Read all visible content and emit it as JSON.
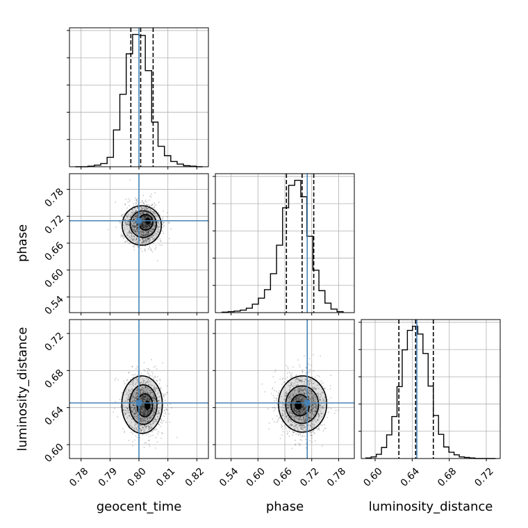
{
  "chart_data": {
    "type": "corner",
    "parameters": [
      "geocent_time",
      "phase",
      "luminosity_distance"
    ],
    "axis_labels": {
      "bottom": [
        "geocent_time",
        "phase",
        "luminosity_distance"
      ],
      "left": [
        "phase",
        "luminosity_distance"
      ]
    },
    "truths": [
      0.8,
      0.71,
      0.645
    ],
    "truth_color": "#4682b4",
    "contour_color": "#000000",
    "grid": true,
    "ranges": [
      [
        0.776,
        0.824
      ],
      [
        0.505,
        0.815
      ],
      [
        0.585,
        0.735
      ]
    ],
    "ticks": {
      "geocent_time": [
        "0.78",
        "0.79",
        "0.80",
        "0.81",
        "0.82"
      ],
      "phase": [
        "0.54",
        "0.60",
        "0.66",
        "0.72",
        "0.78"
      ],
      "luminosity_distance": [
        "0.60",
        "0.64",
        "0.68",
        "0.72"
      ]
    },
    "tick_values": {
      "geocent_time": [
        0.78,
        0.79,
        0.8,
        0.81,
        0.82
      ],
      "phase": [
        0.54,
        0.6,
        0.66,
        0.72,
        0.78
      ],
      "luminosity_distance": [
        0.6,
        0.64,
        0.68,
        0.72
      ]
    },
    "histograms": [
      {
        "parameter": "geocent_time",
        "bin_edges": [
          0.778,
          0.7802,
          0.7824,
          0.7846,
          0.7868,
          0.789,
          0.7912,
          0.7934,
          0.7956,
          0.7978,
          0.8,
          0.8022,
          0.8044,
          0.8066,
          0.8088,
          0.811,
          0.8132,
          0.8154,
          0.8176,
          0.8198,
          0.822
        ],
        "counts": [
          0,
          0,
          1,
          3,
          6,
          18,
          70,
          138,
          215,
          252,
          250,
          183,
          85,
          39,
          21,
          10,
          5,
          2,
          1,
          0
        ],
        "quantiles": [
          0.7972,
          0.8006,
          0.8049
        ]
      },
      {
        "parameter": "phase",
        "bin_edges": [
          0.52,
          0.5335,
          0.547,
          0.5605,
          0.574,
          0.5875,
          0.601,
          0.6145,
          0.628,
          0.6415,
          0.655,
          0.6685,
          0.682,
          0.6955,
          0.709,
          0.7225,
          0.736,
          0.7495,
          0.763,
          0.7765,
          0.79
        ],
        "counts": [
          1,
          2,
          3,
          5,
          9,
          17,
          29,
          46,
          78,
          135,
          210,
          255,
          265,
          232,
          153,
          85,
          44,
          19,
          7,
          2
        ],
        "quantiles": [
          0.6635,
          0.6985,
          0.7245
        ]
      },
      {
        "parameter": "luminosity_distance",
        "bin_edges": [
          0.59,
          0.5956,
          0.6012,
          0.6068,
          0.6124,
          0.618,
          0.6236,
          0.6292,
          0.6348,
          0.6404,
          0.646,
          0.6516,
          0.6572,
          0.6628,
          0.6684,
          0.674,
          0.6796,
          0.6852,
          0.6908,
          0.6964,
          0.702,
          0.7076,
          0.7132,
          0.7188,
          0.7244,
          0.73
        ],
        "counts": [
          1,
          3,
          8,
          21,
          45,
          80,
          137,
          207,
          244,
          252,
          237,
          200,
          138,
          82,
          46,
          22,
          12,
          7,
          3,
          2,
          1,
          0,
          0,
          0,
          0
        ],
        "quantiles": [
          0.6256,
          0.6437,
          0.6628
        ]
      }
    ],
    "contours": [
      {
        "x": "geocent_time",
        "y": "phase",
        "center": [
          0.8015,
          0.7015
        ],
        "sigma": [
          0.0026,
          0.0205
        ],
        "levels": [
          {
            "rx": 0.3,
            "ry": 0.3,
            "dx": 0.6,
            "dy": 0.4
          },
          {
            "rx": 0.95,
            "ry": 0.85,
            "dx": 0.3,
            "dy": 0.25
          },
          {
            "rx": 1.75,
            "ry": 1.45,
            "dx": 0.0,
            "dy": 0.05
          },
          {
            "rx": 2.6,
            "ry": 2.15,
            "dx": -0.2,
            "dy": -0.1
          }
        ]
      },
      {
        "x": "geocent_time",
        "y": "luminosity_distance",
        "center": [
          0.8015,
          0.6425
        ],
        "sigma": [
          0.0028,
          0.0138
        ],
        "levels": [
          {
            "rx": 0.3,
            "ry": 0.3,
            "dx": 0.5,
            "dy": 0.0
          },
          {
            "rx": 0.95,
            "ry": 0.9,
            "dx": 0.2,
            "dy": 0.0
          },
          {
            "rx": 1.7,
            "ry": 1.55,
            "dx": 0.0,
            "dy": 0.05
          },
          {
            "rx": 2.5,
            "ry": 2.25,
            "dx": -0.15,
            "dy": 0.05
          }
        ]
      },
      {
        "x": "phase",
        "y": "luminosity_distance",
        "center": [
          0.6985,
          0.6425
        ],
        "sigma": [
          0.0215,
          0.0135
        ],
        "levels": [
          {
            "rx": 0.3,
            "ry": 0.3,
            "dx": -0.4,
            "dy": 0.0
          },
          {
            "rx": 0.95,
            "ry": 0.85,
            "dx": -0.2,
            "dy": 0.0
          },
          {
            "rx": 1.7,
            "ry": 1.5,
            "dx": 0.0,
            "dy": 0.05
          },
          {
            "rx": 2.5,
            "ry": 2.25,
            "dx": 0.05,
            "dy": 0.1
          }
        ]
      }
    ]
  }
}
